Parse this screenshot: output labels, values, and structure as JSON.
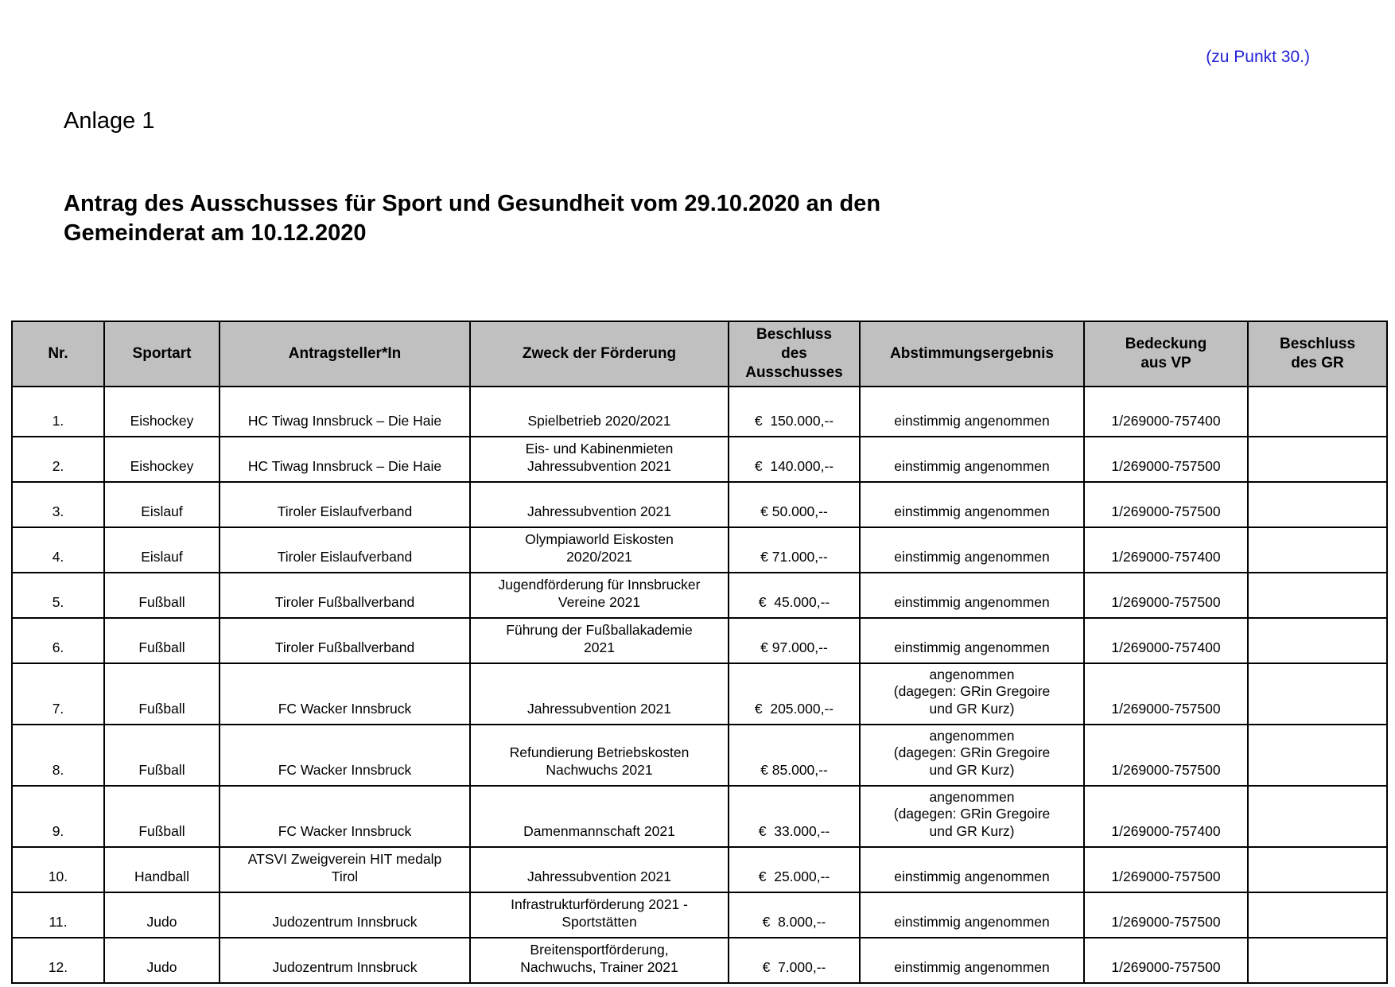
{
  "page": {
    "corner_note": "(zu Punkt 30.)",
    "corner_note_color": "#2121d6",
    "annex_label": "Anlage 1",
    "title": "Antrag des Ausschusses für Sport und Gesundheit vom 29.10.2020 an den\nGemeinderat am 10.12.2020"
  },
  "table": {
    "header_bg": "#c0c0c0",
    "columns": [
      {
        "key": "nr",
        "label": "Nr."
      },
      {
        "key": "sportart",
        "label": "Sportart"
      },
      {
        "key": "antragsteller",
        "label": "Antragsteller*In"
      },
      {
        "key": "zweck",
        "label": "Zweck der Förderung"
      },
      {
        "key": "beschluss",
        "label": "Beschluss\ndes\nAusschusses"
      },
      {
        "key": "abstimmung",
        "label": "Abstimmungsergebnis"
      },
      {
        "key": "bedeckung",
        "label": "Bedeckung\naus VP"
      },
      {
        "key": "beschluss_gr",
        "label": "Beschluss\ndes GR"
      }
    ],
    "rows": [
      {
        "nr": "1.",
        "sportart": "Eishockey",
        "antragsteller": "HC Tiwag Innsbruck – Die Haie",
        "zweck": "Spielbetrieb 2020/2021",
        "beschluss": "€  150.000,--",
        "abstimmung": "einstimmig angenommen",
        "bedeckung": "1/269000-757400",
        "beschluss_gr": ""
      },
      {
        "nr": "2.",
        "sportart": "Eishockey",
        "antragsteller": "HC Tiwag Innsbruck – Die Haie",
        "zweck": "Eis- und Kabinenmieten\nJahressubvention 2021",
        "beschluss": "€  140.000,--",
        "abstimmung": "einstimmig angenommen",
        "bedeckung": "1/269000-757500",
        "beschluss_gr": ""
      },
      {
        "nr": "3.",
        "sportart": "Eislauf",
        "antragsteller": "Tiroler Eislaufverband",
        "zweck": "Jahressubvention 2021",
        "beschluss": "€ 50.000,--",
        "abstimmung": "einstimmig angenommen",
        "bedeckung": "1/269000-757500",
        "beschluss_gr": ""
      },
      {
        "nr": "4.",
        "sportart": "Eislauf",
        "antragsteller": "Tiroler Eislaufverband",
        "zweck": "Olympiaworld Eiskosten\n2020/2021",
        "beschluss": "€ 71.000,--",
        "abstimmung": "einstimmig angenommen",
        "bedeckung": "1/269000-757400",
        "beschluss_gr": ""
      },
      {
        "nr": "5.",
        "sportart": "Fußball",
        "antragsteller": "Tiroler Fußballverband",
        "zweck": "Jugendförderung für Innsbrucker\nVereine 2021",
        "beschluss": "€  45.000,--",
        "abstimmung": "einstimmig angenommen",
        "bedeckung": "1/269000-757500",
        "beschluss_gr": ""
      },
      {
        "nr": "6.",
        "sportart": "Fußball",
        "antragsteller": "Tiroler Fußballverband",
        "zweck": "Führung der Fußballakademie\n2021",
        "beschluss": "€ 97.000,--",
        "abstimmung": "einstimmig angenommen",
        "bedeckung": "1/269000-757400",
        "beschluss_gr": ""
      },
      {
        "nr": "7.",
        "sportart": "Fußball",
        "antragsteller": "FC Wacker Innsbruck",
        "zweck": "Jahressubvention 2021",
        "beschluss": "€  205.000,--",
        "abstimmung": "angenommen\n(dagegen: GRin Gregoire\nund GR Kurz)",
        "bedeckung": "1/269000-757500",
        "beschluss_gr": ""
      },
      {
        "nr": "8.",
        "sportart": "Fußball",
        "antragsteller": "FC Wacker Innsbruck",
        "zweck": "Refundierung Betriebskosten\nNachwuchs 2021",
        "beschluss": "€ 85.000,--",
        "abstimmung": "angenommen\n(dagegen: GRin Gregoire\nund GR Kurz)",
        "bedeckung": "1/269000-757500",
        "beschluss_gr": ""
      },
      {
        "nr": "9.",
        "sportart": "Fußball",
        "antragsteller": "FC Wacker Innsbruck",
        "zweck": "Damenmannschaft 2021",
        "beschluss": "€  33.000,--",
        "abstimmung": "angenommen\n(dagegen: GRin Gregoire\nund GR Kurz)",
        "bedeckung": "1/269000-757400",
        "beschluss_gr": ""
      },
      {
        "nr": "10.",
        "sportart": "Handball",
        "antragsteller": "ATSVI Zweigverein HIT medalp\nTirol",
        "zweck": "Jahressubvention 2021",
        "beschluss": "€  25.000,--",
        "abstimmung": "einstimmig angenommen",
        "bedeckung": "1/269000-757500",
        "beschluss_gr": ""
      },
      {
        "nr": "11.",
        "sportart": "Judo",
        "antragsteller": "Judozentrum Innsbruck",
        "zweck": "Infrastrukturförderung 2021 -\nSportstätten",
        "beschluss": "€  8.000,--",
        "abstimmung": "einstimmig angenommen",
        "bedeckung": "1/269000-757500",
        "beschluss_gr": ""
      },
      {
        "nr": "12.",
        "sportart": "Judo",
        "antragsteller": "Judozentrum Innsbruck",
        "zweck": "Breitensportförderung,\nNachwuchs, Trainer 2021",
        "beschluss": "€  7.000,--",
        "abstimmung": "einstimmig angenommen",
        "bedeckung": "1/269000-757500",
        "beschluss_gr": ""
      }
    ]
  }
}
